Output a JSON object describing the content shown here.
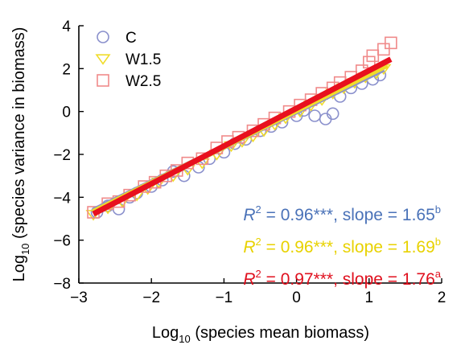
{
  "chart_data": {
    "type": "scatter",
    "xlabel": {
      "prefix": "Log",
      "sub": "10",
      "rest": " (species mean biomass)"
    },
    "ylabel": {
      "prefix": "Log",
      "sub": "10",
      "rest": " (species variance in biomass)"
    },
    "xlim": [
      -3,
      2
    ],
    "ylim": [
      -8,
      4
    ],
    "xticks": [
      -3,
      -2,
      -1,
      0,
      1,
      2
    ],
    "yticks": [
      -8,
      -6,
      -4,
      -2,
      0,
      2,
      4
    ],
    "xtick_labels": [
      "−3",
      "−2",
      "−1",
      "0",
      "1",
      "2"
    ],
    "ytick_labels": [
      "−8",
      "−6",
      "−4",
      "−2",
      "0",
      "2",
      "4"
    ],
    "grid": false,
    "legend_position": "top-left",
    "series": [
      {
        "name": "C",
        "marker": "circle",
        "color": "#8a90cc",
        "line_color": "#8a90cc",
        "fit": {
          "intercept": 0.0,
          "slope": 1.65,
          "x_range": [
            -2.8,
            1.2
          ]
        },
        "stats": {
          "r2_label": "R",
          "sup": "2",
          "r2_value": " = 0.96***, slope = 1.65",
          "letter": "b",
          "color": "#4a72b8"
        },
        "points": [
          [
            -2.75,
            -4.7
          ],
          [
            -2.6,
            -4.4
          ],
          [
            -2.45,
            -4.55
          ],
          [
            -2.3,
            -4.0
          ],
          [
            -2.2,
            -3.8
          ],
          [
            -2.0,
            -3.5
          ],
          [
            -1.85,
            -3.2
          ],
          [
            -1.7,
            -2.8
          ],
          [
            -1.55,
            -3.0
          ],
          [
            -1.35,
            -2.6
          ],
          [
            -1.2,
            -2.2
          ],
          [
            -1.0,
            -1.9
          ],
          [
            -0.85,
            -1.5
          ],
          [
            -0.7,
            -1.3
          ],
          [
            -0.5,
            -0.9
          ],
          [
            -0.35,
            -0.7
          ],
          [
            -0.2,
            -0.5
          ],
          [
            0.0,
            -0.2
          ],
          [
            0.1,
            0.05
          ],
          [
            0.25,
            -0.2
          ],
          [
            0.4,
            -0.35
          ],
          [
            0.5,
            -0.1
          ],
          [
            0.6,
            0.7
          ],
          [
            0.75,
            1.1
          ],
          [
            0.9,
            1.3
          ],
          [
            1.05,
            1.5
          ],
          [
            1.15,
            1.7
          ]
        ]
      },
      {
        "name": "W1.5",
        "marker": "triangle",
        "color": "#f0dc2a",
        "line_color": "#f0dc2a",
        "fit": {
          "intercept": 0.05,
          "slope": 1.69,
          "x_range": [
            -2.8,
            1.25
          ]
        },
        "stats": {
          "r2_label": "R",
          "sup": "2",
          "r2_value": " = 0.96***, slope = 1.69",
          "letter": "b",
          "color": "#e8d200"
        },
        "points": [
          [
            -2.8,
            -4.8
          ],
          [
            -2.6,
            -4.5
          ],
          [
            -2.4,
            -4.2
          ],
          [
            -2.2,
            -3.9
          ],
          [
            -2.05,
            -3.6
          ],
          [
            -1.9,
            -3.3
          ],
          [
            -1.7,
            -3.0
          ],
          [
            -1.5,
            -2.7
          ],
          [
            -1.3,
            -2.4
          ],
          [
            -1.1,
            -2.0
          ],
          [
            -0.9,
            -1.6
          ],
          [
            -0.75,
            -1.4
          ],
          [
            -0.6,
            -1.15
          ],
          [
            -0.45,
            -0.9
          ],
          [
            -0.3,
            -0.6
          ],
          [
            -0.15,
            -0.3
          ],
          [
            0.05,
            0.0
          ],
          [
            0.2,
            0.3
          ],
          [
            0.35,
            0.55
          ],
          [
            0.5,
            0.85
          ],
          [
            0.65,
            1.1
          ],
          [
            0.8,
            1.35
          ],
          [
            0.95,
            1.6
          ],
          [
            1.1,
            1.8
          ],
          [
            1.2,
            2.0
          ]
        ]
      },
      {
        "name": "W2.5",
        "marker": "square",
        "color": "#f08a8a",
        "line_color": "#e8101e",
        "fit": {
          "intercept": 0.15,
          "slope": 1.76,
          "x_range": [
            -2.8,
            1.3
          ]
        },
        "stats": {
          "r2_label": "R",
          "sup": "2",
          "r2_value": " = 0.97***, slope = 1.76",
          "letter": "a",
          "color": "#e0101e"
        },
        "points": [
          [
            -2.8,
            -4.7
          ],
          [
            -2.6,
            -4.3
          ],
          [
            -2.45,
            -4.2
          ],
          [
            -2.3,
            -3.9
          ],
          [
            -2.1,
            -3.5
          ],
          [
            -1.95,
            -3.3
          ],
          [
            -1.8,
            -3.0
          ],
          [
            -1.65,
            -2.75
          ],
          [
            -1.5,
            -2.4
          ],
          [
            -1.3,
            -2.2
          ],
          [
            -1.1,
            -1.7
          ],
          [
            -0.95,
            -1.4
          ],
          [
            -0.8,
            -1.2
          ],
          [
            -0.6,
            -0.9
          ],
          [
            -0.45,
            -0.6
          ],
          [
            -0.3,
            -0.3
          ],
          [
            -0.1,
            0.0
          ],
          [
            0.05,
            0.3
          ],
          [
            0.2,
            0.55
          ],
          [
            0.35,
            0.85
          ],
          [
            0.5,
            1.1
          ],
          [
            0.6,
            1.35
          ],
          [
            0.75,
            1.6
          ],
          [
            0.9,
            1.9
          ],
          [
            1.0,
            2.3
          ],
          [
            1.05,
            2.6
          ],
          [
            1.2,
            2.9
          ],
          [
            1.3,
            3.2
          ]
        ]
      }
    ]
  }
}
